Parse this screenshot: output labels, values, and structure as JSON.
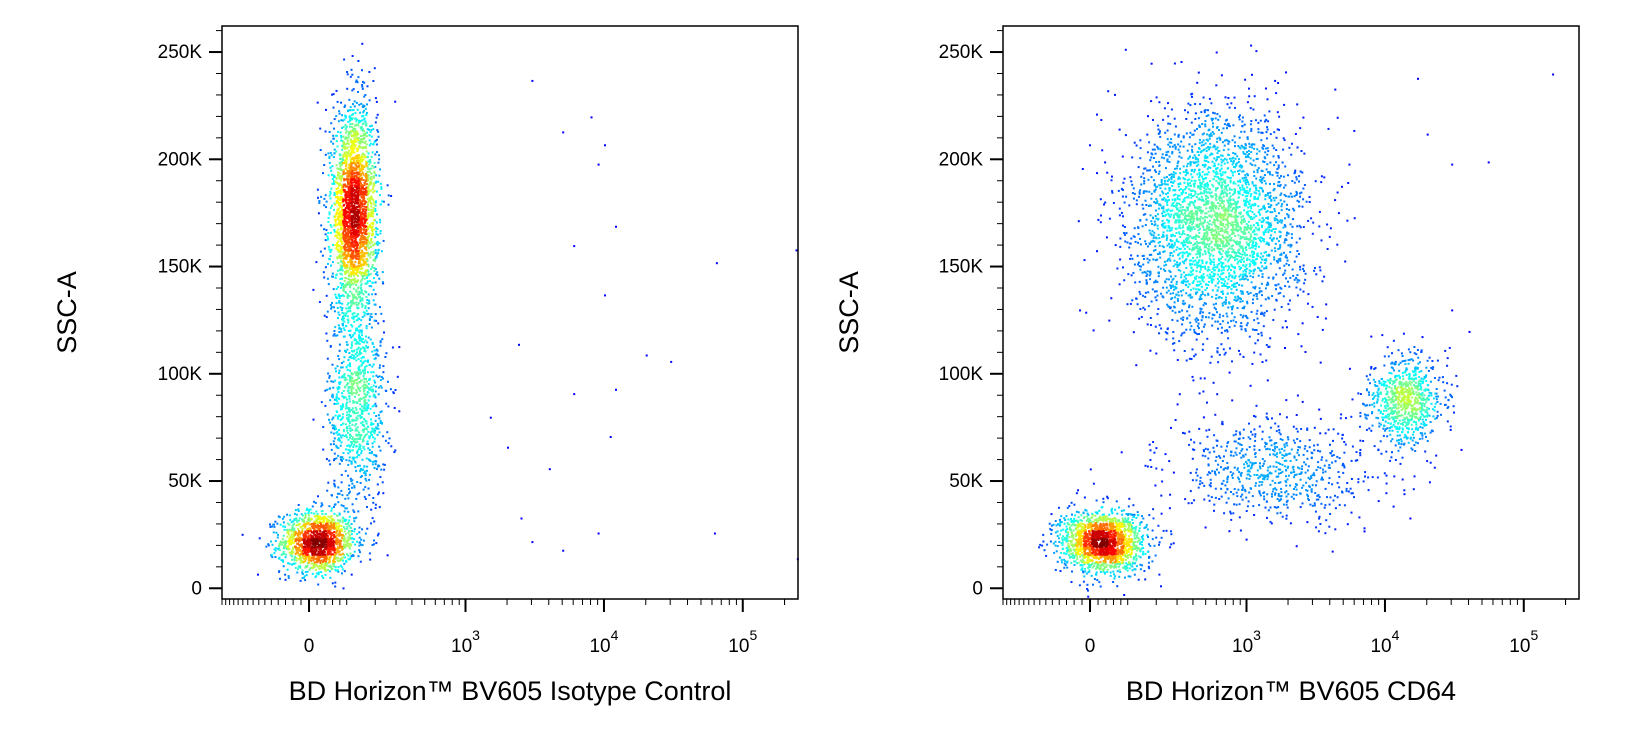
{
  "chart_data": [
    {
      "type": "scatter",
      "plot_style": "pseudocolor density dot plot",
      "xlabel": "BD Horizon™ BV605 Isotype Control",
      "ylabel": "SSC-A",
      "xscale": "biexponential",
      "xlim": [
        -300,
        250000
      ],
      "ylim": [
        -5000,
        262144
      ],
      "x_ticks": [
        {
          "value": 0,
          "base": "0",
          "exp": ""
        },
        {
          "value": 1000,
          "base": "10",
          "exp": "3"
        },
        {
          "value": 10000,
          "base": "10",
          "exp": "4"
        },
        {
          "value": 100000,
          "base": "10",
          "exp": "5"
        }
      ],
      "y_ticks": [
        {
          "value": 0,
          "label": "0"
        },
        {
          "value": 50000,
          "label": "50K"
        },
        {
          "value": 100000,
          "label": "100K"
        },
        {
          "value": 150000,
          "label": "150K"
        },
        {
          "value": 200000,
          "label": "200K"
        },
        {
          "value": 250000,
          "label": "250K"
        }
      ],
      "populations": [
        {
          "x_center": 20,
          "y_center": 22000,
          "x_spread": 60,
          "y_spread": 9000,
          "count": 1400,
          "peak_density": "red"
        },
        {
          "x_center": 130,
          "y_center": 85000,
          "x_spread": 60,
          "y_spread": 30000,
          "count": 900,
          "peak_density": "light-blue"
        },
        {
          "x_center": 120,
          "y_center": 175000,
          "x_spread": 45,
          "y_spread": 30000,
          "count": 2600,
          "peak_density": "red"
        }
      ],
      "outlier_points": [
        [
          3000,
          237000
        ],
        [
          8000,
          220000
        ],
        [
          5000,
          213000
        ],
        [
          10000,
          207000
        ],
        [
          9000,
          198000
        ],
        [
          12000,
          169000
        ],
        [
          6000,
          160000
        ],
        [
          64000,
          152000
        ],
        [
          240000,
          158000
        ],
        [
          10000,
          137000
        ],
        [
          2400,
          114000
        ],
        [
          20000,
          109000
        ],
        [
          30000,
          106000
        ],
        [
          12000,
          93000
        ],
        [
          6000,
          91000
        ],
        [
          11000,
          71000
        ],
        [
          4000,
          56000
        ],
        [
          2500,
          33000
        ],
        [
          5000,
          18000
        ],
        [
          9000,
          26000
        ],
        [
          3000,
          22000
        ],
        [
          62000,
          26000
        ],
        [
          245000,
          14000
        ],
        [
          1500,
          80000
        ],
        [
          2000,
          66000
        ]
      ]
    },
    {
      "type": "scatter",
      "plot_style": "pseudocolor density dot plot",
      "xlabel": "BD Horizon™ BV605 CD64",
      "ylabel": "SSC-A",
      "xscale": "biexponential",
      "xlim": [
        -300,
        250000
      ],
      "ylim": [
        -5000,
        262144
      ],
      "x_ticks": [
        {
          "value": 0,
          "base": "0",
          "exp": ""
        },
        {
          "value": 1000,
          "base": "10",
          "exp": "3"
        },
        {
          "value": 10000,
          "base": "10",
          "exp": "4"
        },
        {
          "value": 100000,
          "base": "10",
          "exp": "5"
        }
      ],
      "y_ticks": [
        {
          "value": 0,
          "label": "0"
        },
        {
          "value": 50000,
          "label": "50K"
        },
        {
          "value": 100000,
          "label": "100K"
        },
        {
          "value": 150000,
          "label": "150K"
        },
        {
          "value": 200000,
          "label": "200K"
        },
        {
          "value": 250000,
          "label": "250K"
        }
      ],
      "populations": [
        {
          "x_center": 30,
          "y_center": 22000,
          "x_spread": 70,
          "y_spread": 9000,
          "count": 1700,
          "peak_density": "red"
        },
        {
          "x_center": 600,
          "y_center": 170000,
          "x_spread": 450,
          "y_spread": 32000,
          "count": 3200,
          "peak_density": "yellow"
        },
        {
          "x_center": 14000,
          "y_center": 88000,
          "x_spread": 5000,
          "y_spread": 13000,
          "count": 800,
          "peak_density": "light-blue"
        },
        {
          "x_center": 1500,
          "y_center": 55000,
          "x_spread": 1200,
          "y_spread": 15000,
          "count": 700,
          "peak_density": "blue"
        }
      ],
      "outlier_points": [
        [
          160000,
          240000
        ],
        [
          55000,
          199000
        ],
        [
          30000,
          198000
        ],
        [
          20000,
          212000
        ],
        [
          17000,
          238000
        ],
        [
          40000,
          120000
        ],
        [
          30000,
          130000
        ],
        [
          35000,
          65000
        ],
        [
          15000,
          33000
        ],
        [
          7000,
          27000
        ]
      ]
    }
  ]
}
